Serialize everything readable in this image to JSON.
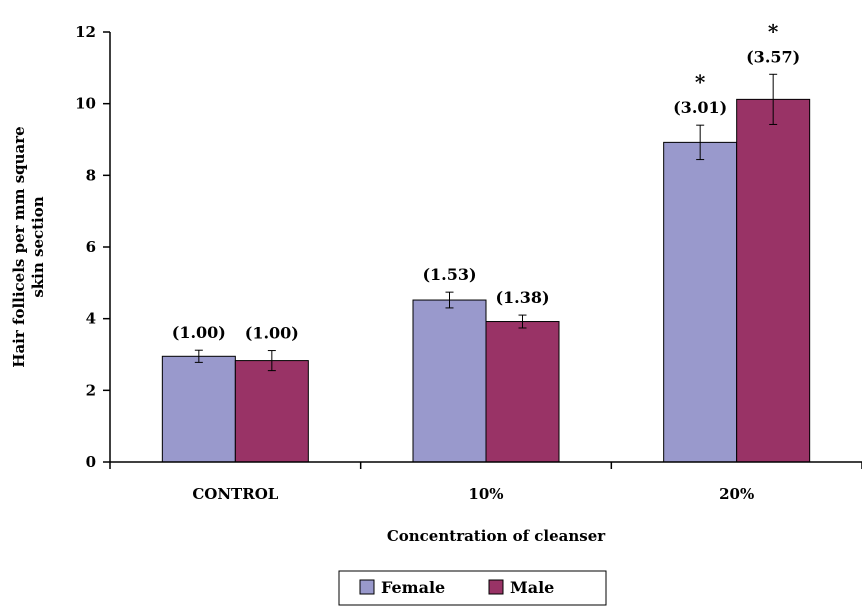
{
  "chart_data": {
    "type": "bar",
    "title": "",
    "xlabel": "Concentration of cleanser",
    "ylabel_lines": [
      "Hair follicels per mm square",
      "skin section"
    ],
    "categories": [
      "CONTROL",
      "10%",
      "20%"
    ],
    "ylim": [
      0,
      12
    ],
    "yticks": [
      "0",
      "2",
      "4",
      "6",
      "8",
      "10",
      "12"
    ],
    "grid": false,
    "legend_position": "bottom-center",
    "series": [
      {
        "name": "Female",
        "color": "#9999cc",
        "values": [
          2.95,
          4.52,
          8.92
        ],
        "errors": [
          0.17,
          0.22,
          0.48
        ],
        "labels": [
          "(1.00)",
          "(1.53)",
          "(3.01)"
        ],
        "significance": [
          "",
          "",
          "*"
        ]
      },
      {
        "name": "Male",
        "color": "#993366",
        "values": [
          2.83,
          3.92,
          10.12
        ],
        "errors": [
          0.28,
          0.18,
          0.7
        ],
        "labels": [
          "(1.00)",
          "(1.38)",
          "(3.57)"
        ],
        "significance": [
          "",
          "",
          "*"
        ]
      }
    ]
  }
}
